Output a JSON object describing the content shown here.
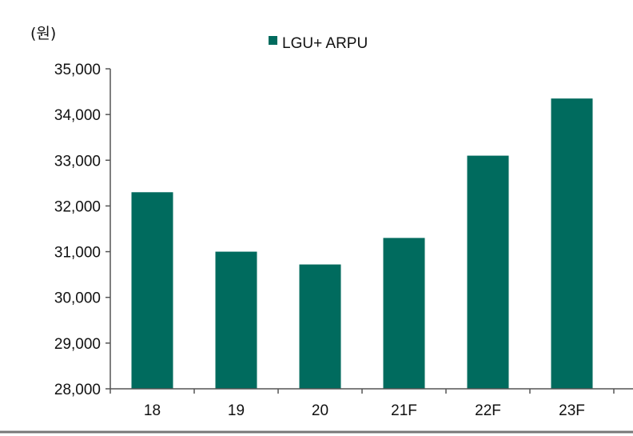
{
  "chart_data": {
    "type": "bar",
    "unit_label": "(원)",
    "categories": [
      "18",
      "19",
      "20",
      "21F",
      "22F",
      "23F"
    ],
    "series": [
      {
        "name": "LGU+ ARPU",
        "values": [
          32300,
          31000,
          30720,
          31300,
          33100,
          34350
        ],
        "color": "#006b5e"
      }
    ],
    "ylim": [
      28000,
      35000
    ],
    "yticks": [
      28000,
      29000,
      30000,
      31000,
      32000,
      33000,
      34000,
      35000
    ],
    "ytick_labels": [
      "28,000",
      "29,000",
      "30,000",
      "31,000",
      "32,000",
      "33,000",
      "34,000",
      "35,000"
    ],
    "legend_position": "top-center",
    "grid": false
  }
}
